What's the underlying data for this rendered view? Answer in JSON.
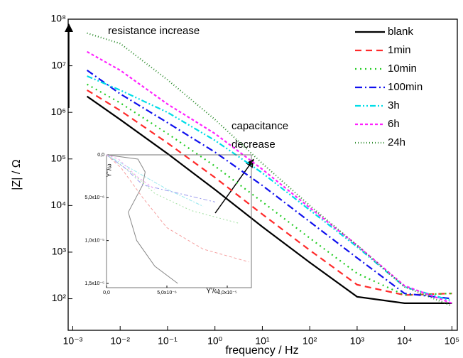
{
  "chart_data": [
    {
      "type": "line",
      "title_y": "|Z| / Ω",
      "title_x": "frequency / Hz",
      "xlog": true,
      "ylog": true,
      "xlim": [
        0.0008,
        130000
      ],
      "ylim": [
        21,
        100000000
      ],
      "xticks": [
        {
          "value": 0.001,
          "label": "10⁻³"
        },
        {
          "value": 0.01,
          "label": "10⁻²"
        },
        {
          "value": 0.1,
          "label": "10⁻¹"
        },
        {
          "value": 1,
          "label": "10⁰"
        },
        {
          "value": 10,
          "label": "10¹"
        },
        {
          "value": 100,
          "label": "10²"
        },
        {
          "value": 1000,
          "label": "10³"
        },
        {
          "value": 10000,
          "label": "10⁴"
        },
        {
          "value": 100000,
          "label": "10⁵"
        }
      ],
      "yticks": [
        {
          "value": 100,
          "label": "10²"
        },
        {
          "value": 1000,
          "label": "10³"
        },
        {
          "value": 10000,
          "label": "10⁴"
        },
        {
          "value": 100000,
          "label": "10⁵"
        },
        {
          "value": 1000000,
          "label": "10⁶"
        },
        {
          "value": 10000000,
          "label": "10⁷"
        },
        {
          "value": 100000000,
          "label": "10⁸"
        }
      ],
      "legend": "top-right",
      "annotations": [
        "resistance increase",
        "capacitance",
        "decrease"
      ],
      "x": [
        0.002,
        0.01,
        0.1,
        1,
        10,
        100,
        1000,
        10000,
        100000
      ],
      "series": [
        {
          "name": "blank",
          "color": "#000000",
          "dash": "none",
          "values": [
            2200000,
            700000,
            130000,
            22000,
            3500,
            600,
            110,
            80,
            80
          ]
        },
        {
          "name": "1min",
          "color": "#ff2a2a",
          "dash": "9,6",
          "values": [
            3000000,
            1100000,
            220000,
            40000,
            6500,
            1100,
            200,
            120,
            130
          ]
        },
        {
          "name": "10min",
          "color": "#22cc22",
          "dash": "2,5",
          "values": [
            4000000,
            1600000,
            350000,
            70000,
            12000,
            2000,
            350,
            120,
            130
          ]
        },
        {
          "name": "100min",
          "color": "#1010ee",
          "dash": "10,4,2,4",
          "values": [
            8000000,
            2500000,
            600000,
            140000,
            27000,
            4500,
            750,
            130,
            100
          ]
        },
        {
          "name": "3h",
          "color": "#00dde8",
          "dash": "8,3,2,3,2,3",
          "values": [
            6000000,
            3000000,
            1000000,
            250000,
            50000,
            8000,
            1300,
            180,
            90
          ]
        },
        {
          "name": "6h",
          "color": "#ff22ff",
          "dash": "4,3",
          "values": [
            20000000,
            8000000,
            1500000,
            350000,
            60000,
            9000,
            1400,
            190,
            80
          ]
        },
        {
          "name": "24h",
          "color": "#2a8a2a",
          "dash": "1,3",
          "values": [
            50000000,
            30000000,
            5000000,
            700000,
            80000,
            10000,
            1400,
            180,
            70
          ]
        }
      ]
    },
    {
      "type": "line",
      "title_y": "Y''/ω",
      "title_x": "Y'/ω",
      "xlog": false,
      "ylog": false,
      "yinvert": true,
      "xlim": [
        0,
        1.2e-05
      ],
      "ylim": [
        0,
        1.55e-05
      ],
      "xticks": [
        {
          "value": 0,
          "label": "0,0"
        },
        {
          "value": 5e-06,
          "label": "5,0x10⁻⁶"
        },
        {
          "value": 1e-05,
          "label": "1,0x10⁻⁵"
        }
      ],
      "yticks": [
        {
          "value": 0,
          "label": "0,0"
        },
        {
          "value": 5e-06,
          "label": "5,0x10⁻⁶"
        },
        {
          "value": 1e-05,
          "label": "1,0x10⁻⁵"
        },
        {
          "value": 1.5e-05,
          "label": "1,5x10⁻⁵"
        }
      ],
      "series": [
        {
          "color": "#888888",
          "dash": "none",
          "x": [
            0,
            2.6e-06,
            3.2e-06,
            3e-06,
            1.8e-06,
            2.5e-06,
            4e-06,
            5.9e-06
          ],
          "values": [
            0,
            5e-07,
            2e-06,
            3.5e-06,
            6.7e-06,
            1e-05,
            1.3e-05,
            1.5e-05
          ]
        },
        {
          "color": "#f5a0a0",
          "dash": "4,3",
          "x": [
            0,
            1.2e-06,
            3e-06,
            5e-06,
            8e-06,
            1.18e-05
          ],
          "values": [
            0,
            1.5e-06,
            5e-06,
            8.5e-06,
            1.1e-05,
            1.25e-05
          ]
        },
        {
          "color": "#a0e0a0",
          "dash": "2,3",
          "x": [
            0,
            2e-06,
            4e-06,
            7e-06,
            1.1e-05
          ],
          "values": [
            0,
            2e-06,
            4.5e-06,
            6.5e-06,
            8e-06
          ]
        },
        {
          "color": "#9a9aee",
          "dash": "6,3,2,3",
          "x": [
            0,
            1.5e-06,
            3e-06,
            6e-06,
            9e-06
          ],
          "values": [
            0,
            1.5e-06,
            3.5e-06,
            4.5e-06,
            5.5e-06
          ]
        },
        {
          "color": "#99e8ee",
          "dash": "5,2,2,2",
          "x": [
            0,
            2.5e-06,
            5e-06,
            8e-06
          ],
          "values": [
            0,
            2e-06,
            4e-06,
            6e-06
          ]
        },
        {
          "color": "#f0a0f0",
          "dash": "3,3",
          "x": [
            0,
            1e-06,
            2.5e-06,
            4e-06
          ],
          "values": [
            0,
            5e-07,
            2.5e-06,
            4e-06
          ]
        }
      ]
    }
  ]
}
